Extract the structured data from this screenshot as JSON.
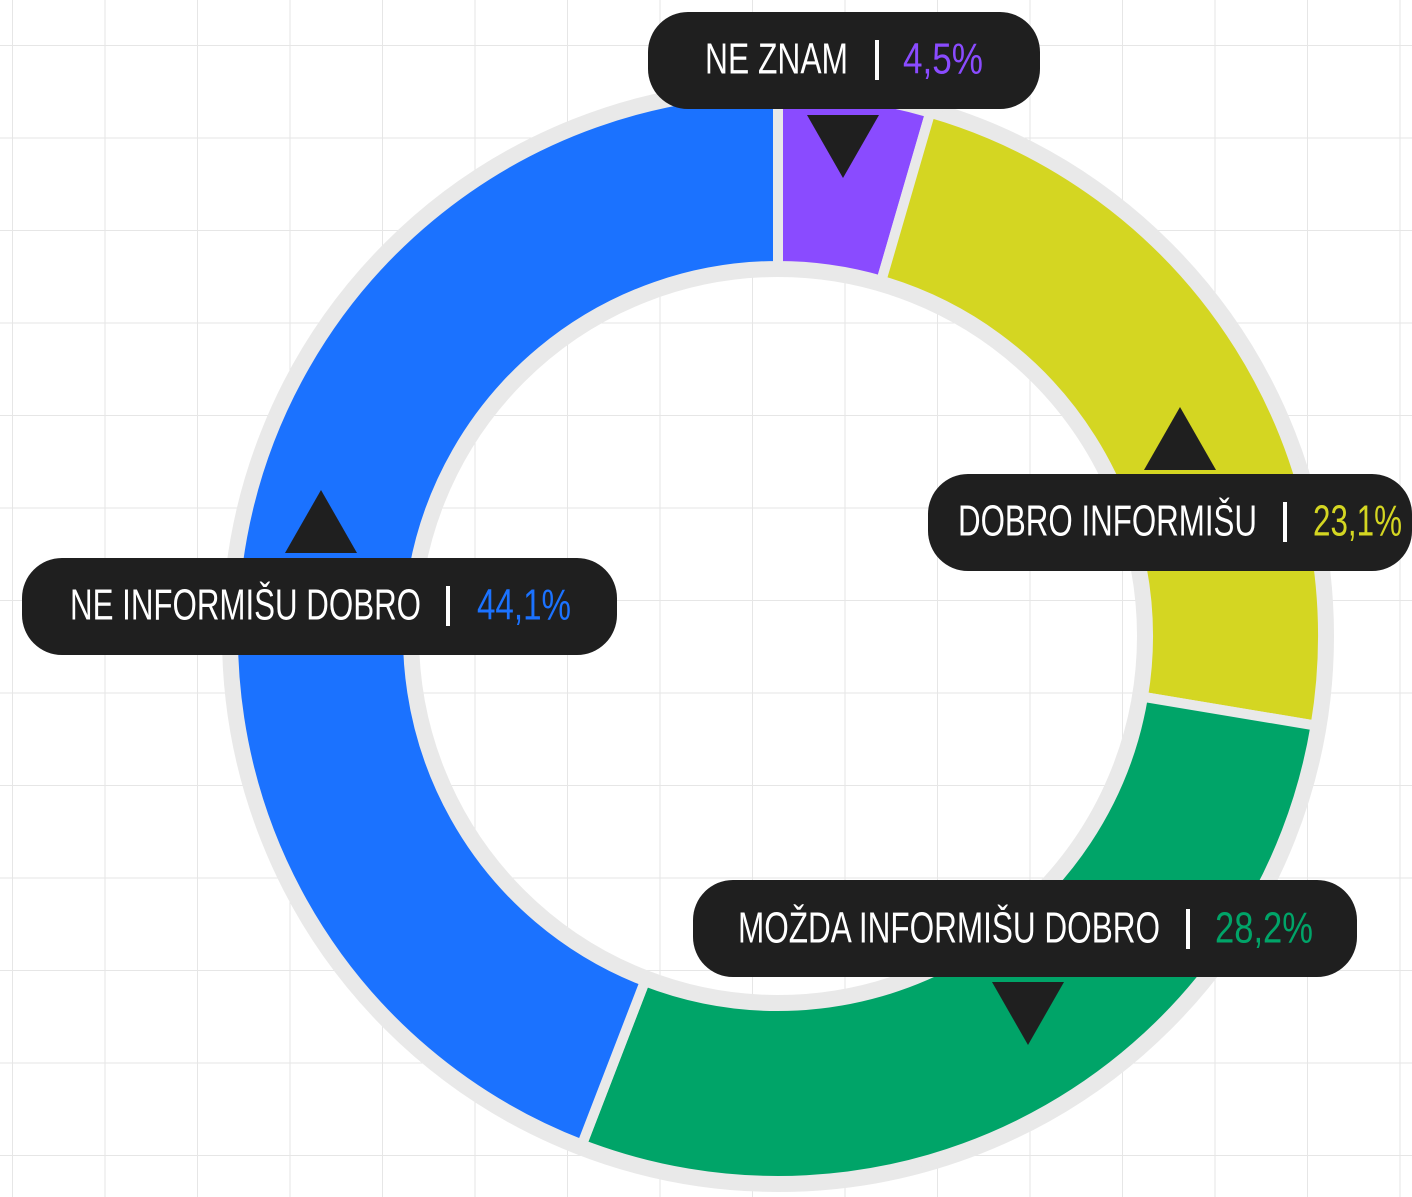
{
  "chart_data": {
    "type": "donut",
    "categories": [
      "NE ZNAM",
      "DOBRO INFORMIŠU",
      "MOŽDA INFORMIŠU DOBRO",
      "NE INFORMIŠU DOBRO"
    ],
    "values": [
      4.5,
      23.1,
      28.2,
      44.1
    ],
    "value_labels": [
      "4,5%",
      "23,1%",
      "28,2%",
      "44,1%"
    ],
    "colors": [
      "#8a4bff",
      "#d4d622",
      "#00a468",
      "#1b72ff"
    ]
  }
}
